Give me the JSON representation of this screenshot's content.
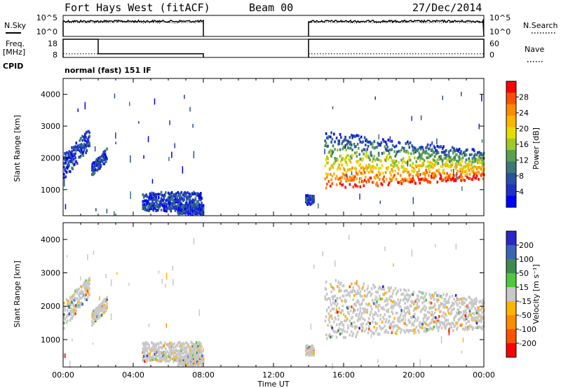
{
  "header": {
    "title": "Fort Hays West (fitACF)",
    "beam": "Beam 00",
    "date": "27/Dec/2014"
  },
  "labels": {
    "nsky": "N.Sky",
    "nsearch": "N.Search",
    "freq_line1": "Freq.",
    "freq_line2": "[MHz]",
    "nave": "Nave",
    "cpid": "CPID",
    "cpid_value": "normal (fast) 151 IF",
    "noise_tick_top": "10^5",
    "noise_tick_bottom": "10^0",
    "freq_tick_top": "18",
    "freq_tick_bottom": "8",
    "nave_tick_top": "60",
    "nave_tick_bottom": "0",
    "ylabel_power": "Slant Range [km]",
    "ylabel_velocity": "Slant Range [km]",
    "xlabel": "Time UT",
    "power_cbar_label": "Power [dB]",
    "velocity_cbar_label": "Velocity [m s⁻¹]"
  },
  "chart_data": [
    {
      "type": "line",
      "name": "noise",
      "x_hours": [
        0,
        8,
        14,
        24
      ],
      "segments": [
        [
          0,
          8
        ],
        [
          14,
          24
        ]
      ],
      "ylim_log10": [
        0,
        5
      ],
      "nsky_log10": 3.6,
      "nsearch_log10": 3.3
    },
    {
      "type": "line",
      "name": "freq-nave",
      "freq_ylim": [
        8,
        18
      ],
      "nave_ylim": [
        0,
        60
      ],
      "freq_steps": [
        {
          "start": 0,
          "end": 2,
          "value": 18
        },
        {
          "start": 2,
          "end": 8,
          "value": 10
        },
        {
          "start": 14,
          "end": 24,
          "value": 18
        }
      ],
      "nave_level": 12
    },
    {
      "type": "heatmap",
      "name": "power",
      "x_ticks": [
        "00:00",
        "04:00",
        "08:00",
        "12:00",
        "16:00",
        "20:00",
        "00:00"
      ],
      "xlim_hours": [
        0,
        24
      ],
      "y_ticks": [
        "1000",
        "2000",
        "3000",
        "4000"
      ],
      "ylim_km": [
        180,
        4500
      ],
      "colorbar": {
        "ticks": [
          "28",
          "24",
          "20",
          "16",
          "12",
          "8",
          "4"
        ],
        "colors": [
          "#ff0000",
          "#ff5000",
          "#ff8c00",
          "#ffb400",
          "#e6dc00",
          "#a0c828",
          "#5aa050",
          "#3c7878",
          "#2850a0",
          "#1e32c8",
          "#0000ff"
        ]
      },
      "regions": [
        {
          "x0": 0.0,
          "x1": 1.5,
          "y0_start": 1300,
          "y1_start": 2100,
          "y0_end": 2300,
          "y1_end": 2900
        },
        {
          "x0": 1.6,
          "x1": 2.5,
          "y0_start": 1400,
          "y1_start": 1800,
          "y0_end": 1900,
          "y1_end": 2300
        },
        {
          "x0": 4.5,
          "x1": 7.9,
          "y0_start": 300,
          "y1_start": 900,
          "y0_end": 300,
          "y1_end": 900
        },
        {
          "x0": 6.5,
          "x1": 8.0,
          "y0_start": 200,
          "y1_start": 500,
          "y0_end": 200,
          "y1_end": 500
        },
        {
          "x0": 13.8,
          "x1": 14.3,
          "y0_start": 500,
          "y1_start": 800,
          "y0_end": 500,
          "y1_end": 800
        },
        {
          "x0": 14.9,
          "x1": 24.0,
          "y0_start": 1000,
          "y1_start": 2800,
          "y0_end": 1300,
          "y1_end": 2200
        }
      ]
    },
    {
      "type": "heatmap",
      "name": "velocity",
      "x_ticks": [
        "00:00",
        "04:00",
        "08:00",
        "12:00",
        "16:00",
        "20:00",
        "00:00"
      ],
      "xlim_hours": [
        0,
        24
      ],
      "y_ticks": [
        "1000",
        "2000",
        "3000",
        "4000"
      ],
      "ylim_km": [
        180,
        4500
      ],
      "colorbar": {
        "ticks": [
          "200",
          "100",
          "50",
          "15",
          "-15",
          "-50",
          "-100",
          "-200"
        ],
        "colors": [
          "#2828c8",
          "#3c64b4",
          "#3c8c50",
          "#50c83c",
          "#c8c8c8",
          "#ffb400",
          "#ff8c00",
          "#ff5000",
          "#ff0000"
        ]
      },
      "regions": [
        {
          "x0": 0.0,
          "x1": 1.5,
          "y0_start": 1300,
          "y1_start": 2100,
          "y0_end": 2300,
          "y1_end": 2900
        },
        {
          "x0": 1.6,
          "x1": 2.5,
          "y0_start": 1400,
          "y1_start": 1800,
          "y0_end": 1900,
          "y1_end": 2300
        },
        {
          "x0": 4.5,
          "x1": 7.9,
          "y0_start": 300,
          "y1_start": 900,
          "y0_end": 300,
          "y1_end": 900
        },
        {
          "x0": 6.5,
          "x1": 8.0,
          "y0_start": 200,
          "y1_start": 500,
          "y0_end": 200,
          "y1_end": 500
        },
        {
          "x0": 13.8,
          "x1": 14.3,
          "y0_start": 500,
          "y1_start": 800,
          "y0_end": 500,
          "y1_end": 800
        },
        {
          "x0": 14.9,
          "x1": 24.0,
          "y0_start": 1000,
          "y1_start": 2800,
          "y0_end": 1300,
          "y1_end": 2200
        }
      ]
    }
  ]
}
